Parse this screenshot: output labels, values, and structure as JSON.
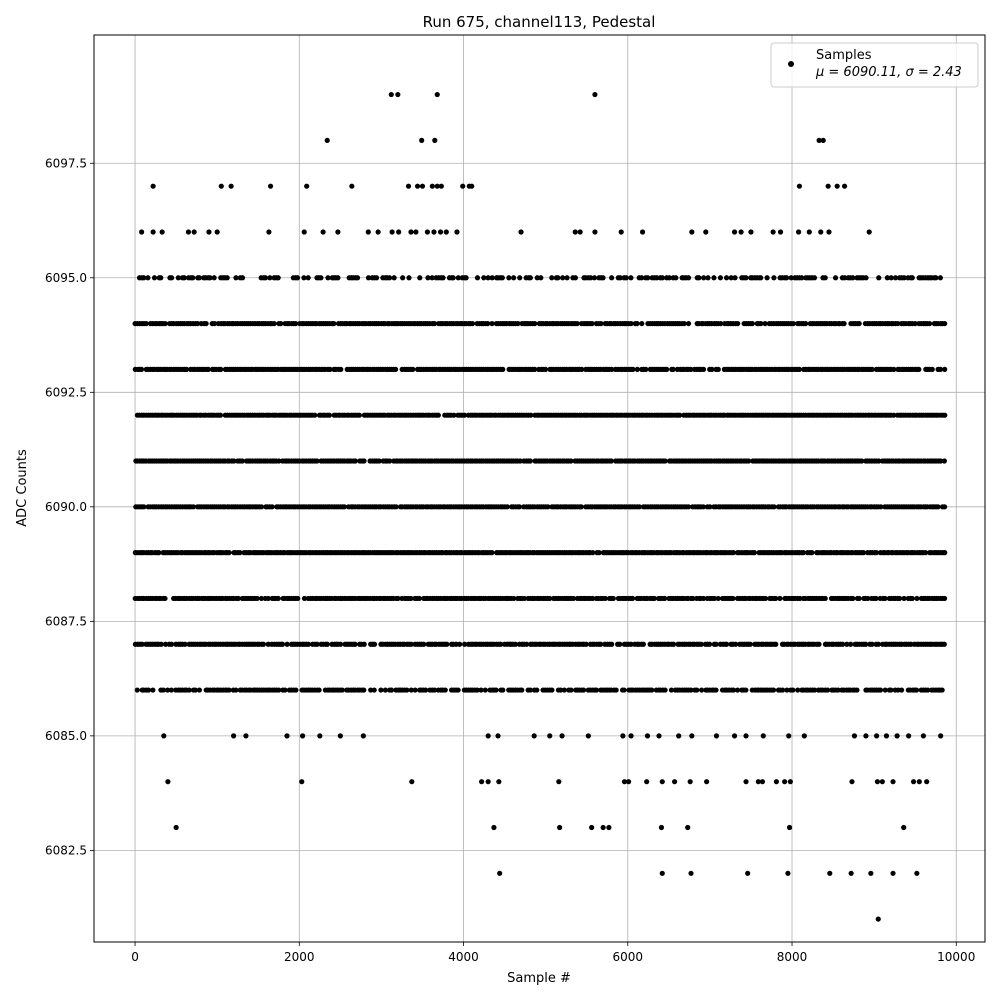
{
  "chart_data": {
    "type": "scatter",
    "title": "Run 675, channel113, Pedestal",
    "xlabel": "Sample #",
    "ylabel": "ADC Counts",
    "xlim": [
      -500,
      10350
    ],
    "ylim": [
      6080.5,
      6100.3
    ],
    "grid": true,
    "xticks": [
      0,
      2000,
      4000,
      6000,
      8000,
      10000
    ],
    "xtick_labels": [
      "0",
      "2000",
      "4000",
      "6000",
      "8000",
      "10000"
    ],
    "yticks": [
      6082.5,
      6085.0,
      6087.5,
      6090.0,
      6092.5,
      6095.0,
      6097.5
    ],
    "ytick_labels": [
      "6082.5",
      "6085.0",
      "6087.5",
      "6090.0",
      "6092.5",
      "6095.0",
      "6097.5"
    ],
    "legend": {
      "position": "top-right",
      "entries": [
        {
          "line1": "Samples",
          "line2": "μ = 6090.11, σ = 2.43"
        }
      ]
    },
    "marker_color": "#000000",
    "series": [
      {
        "n_samples": 9866,
        "x_start": 0,
        "x_end": 9865,
        "levels": [
          {
            "y": 6094,
            "segments": [
              [
                0,
                9865
              ]
            ]
          },
          {
            "y": 6093,
            "segments": [
              [
                0,
                9865
              ]
            ]
          },
          {
            "y": 6092,
            "segments": [
              [
                0,
                9865
              ]
            ]
          },
          {
            "y": 6091,
            "segments": [
              [
                0,
                9865
              ]
            ]
          },
          {
            "y": 6090,
            "segments": [
              [
                0,
                9865
              ]
            ]
          },
          {
            "y": 6089,
            "segments": [
              [
                0,
                9865
              ]
            ]
          },
          {
            "y": 6088,
            "segments": [
              [
                0,
                9865
              ]
            ]
          },
          {
            "y": 6087,
            "segments": [
              [
                0,
                9865
              ]
            ]
          },
          {
            "y": 6086,
            "segments": [
              [
                0,
                9865
              ]
            ]
          },
          {
            "y": 6095,
            "segments": [
              [
                0,
                9865
              ]
            ]
          }
        ],
        "outliers": [
          [
            3120,
            6099
          ],
          [
            3200,
            6099
          ],
          [
            3680,
            6099
          ],
          [
            5600,
            6099
          ],
          [
            2340,
            6098
          ],
          [
            3490,
            6098
          ],
          [
            3650,
            6098
          ],
          [
            8330,
            6098
          ],
          [
            8380,
            6098
          ],
          [
            220,
            6097
          ],
          [
            1050,
            6097
          ],
          [
            1170,
            6097
          ],
          [
            1650,
            6097
          ],
          [
            2090,
            6097
          ],
          [
            2640,
            6097
          ],
          [
            3330,
            6097
          ],
          [
            3440,
            6097
          ],
          [
            3500,
            6097
          ],
          [
            3620,
            6097
          ],
          [
            3680,
            6097
          ],
          [
            3730,
            6097
          ],
          [
            3990,
            6097
          ],
          [
            4070,
            6097
          ],
          [
            4100,
            6097
          ],
          [
            8090,
            6097
          ],
          [
            8440,
            6097
          ],
          [
            8550,
            6097
          ],
          [
            8640,
            6097
          ],
          [
            80,
            6096
          ],
          [
            220,
            6096
          ],
          [
            330,
            6096
          ],
          [
            650,
            6096
          ],
          [
            720,
            6096
          ],
          [
            900,
            6096
          ],
          [
            1000,
            6096
          ],
          [
            1630,
            6096
          ],
          [
            2060,
            6096
          ],
          [
            2290,
            6096
          ],
          [
            2470,
            6096
          ],
          [
            2840,
            6096
          ],
          [
            2960,
            6096
          ],
          [
            3130,
            6096
          ],
          [
            3210,
            6096
          ],
          [
            3360,
            6096
          ],
          [
            3420,
            6096
          ],
          [
            3560,
            6096
          ],
          [
            3640,
            6096
          ],
          [
            3720,
            6096
          ],
          [
            3790,
            6096
          ],
          [
            3920,
            6096
          ],
          [
            4700,
            6096
          ],
          [
            5360,
            6096
          ],
          [
            5420,
            6096
          ],
          [
            5600,
            6096
          ],
          [
            5920,
            6096
          ],
          [
            6180,
            6096
          ],
          [
            6780,
            6096
          ],
          [
            6950,
            6096
          ],
          [
            7300,
            6096
          ],
          [
            7380,
            6096
          ],
          [
            7500,
            6096
          ],
          [
            7770,
            6096
          ],
          [
            7860,
            6096
          ],
          [
            8080,
            6096
          ],
          [
            8210,
            6096
          ],
          [
            8350,
            6096
          ],
          [
            8450,
            6096
          ],
          [
            8940,
            6096
          ],
          [
            350,
            6085
          ],
          [
            1200,
            6085
          ],
          [
            1350,
            6085
          ],
          [
            1850,
            6085
          ],
          [
            2040,
            6085
          ],
          [
            2250,
            6085
          ],
          [
            2500,
            6085
          ],
          [
            2780,
            6085
          ],
          [
            4300,
            6085
          ],
          [
            4420,
            6085
          ],
          [
            4860,
            6085
          ],
          [
            5050,
            6085
          ],
          [
            5200,
            6085
          ],
          [
            5520,
            6085
          ],
          [
            5940,
            6085
          ],
          [
            6040,
            6085
          ],
          [
            6240,
            6085
          ],
          [
            6380,
            6085
          ],
          [
            6620,
            6085
          ],
          [
            6780,
            6085
          ],
          [
            7080,
            6085
          ],
          [
            7300,
            6085
          ],
          [
            7440,
            6085
          ],
          [
            7650,
            6085
          ],
          [
            7960,
            6085
          ],
          [
            8150,
            6085
          ],
          [
            8760,
            6085
          ],
          [
            8900,
            6085
          ],
          [
            9030,
            6085
          ],
          [
            9150,
            6085
          ],
          [
            9280,
            6085
          ],
          [
            9420,
            6085
          ],
          [
            9600,
            6085
          ],
          [
            9810,
            6085
          ],
          [
            400,
            6084
          ],
          [
            2030,
            6084
          ],
          [
            3370,
            6084
          ],
          [
            4220,
            6084
          ],
          [
            4300,
            6084
          ],
          [
            4430,
            6084
          ],
          [
            5160,
            6084
          ],
          [
            5960,
            6084
          ],
          [
            6010,
            6084
          ],
          [
            6230,
            6084
          ],
          [
            6420,
            6084
          ],
          [
            6570,
            6084
          ],
          [
            6760,
            6084
          ],
          [
            6960,
            6084
          ],
          [
            7440,
            6084
          ],
          [
            7590,
            6084
          ],
          [
            7640,
            6084
          ],
          [
            7810,
            6084
          ],
          [
            7910,
            6084
          ],
          [
            7980,
            6084
          ],
          [
            8730,
            6084
          ],
          [
            9040,
            6084
          ],
          [
            9100,
            6084
          ],
          [
            9230,
            6084
          ],
          [
            9480,
            6084
          ],
          [
            9550,
            6084
          ],
          [
            9640,
            6084
          ],
          [
            500,
            6083
          ],
          [
            4370,
            6083
          ],
          [
            5170,
            6083
          ],
          [
            5560,
            6083
          ],
          [
            5700,
            6083
          ],
          [
            5770,
            6083
          ],
          [
            6410,
            6083
          ],
          [
            6730,
            6083
          ],
          [
            7970,
            6083
          ],
          [
            9360,
            6083
          ],
          [
            4440,
            6082
          ],
          [
            6420,
            6082
          ],
          [
            6770,
            6082
          ],
          [
            7460,
            6082
          ],
          [
            7950,
            6082
          ],
          [
            8460,
            6082
          ],
          [
            8720,
            6082
          ],
          [
            8960,
            6082
          ],
          [
            9230,
            6082
          ],
          [
            9520,
            6082
          ],
          [
            9050,
            6081
          ]
        ]
      }
    ]
  }
}
